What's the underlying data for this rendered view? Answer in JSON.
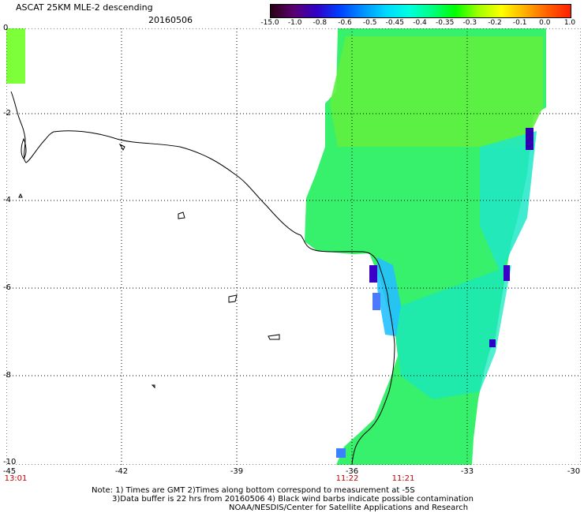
{
  "title": "ASCAT 25KM MLE-2 descending",
  "date": "20160506",
  "colorbar": {
    "labels": [
      "-15.0",
      "-1.0",
      "-0.8",
      "-0.6",
      "-0.5",
      "-0.45",
      "-0.4",
      "-0.35",
      "-0.3",
      "-0.2",
      "-0.1",
      "0.0",
      "1.0"
    ],
    "colors": [
      "#2a0010",
      "#5a0070",
      "#3000c8",
      "#0040ff",
      "#0090ff",
      "#00d8ff",
      "#00ffe0",
      "#00ff80",
      "#00ff00",
      "#a0ff00",
      "#ffff00",
      "#ffb000",
      "#ff6000",
      "#ff2000"
    ]
  },
  "axes": {
    "x_ticks": [
      "-45",
      "-42",
      "-39",
      "-36",
      "-33",
      "-30"
    ],
    "y_ticks": [
      "0",
      "-2",
      "-4",
      "-6",
      "-8",
      "-10"
    ],
    "x_range": [
      -45,
      -30
    ],
    "y_range": [
      -10,
      0
    ]
  },
  "pass_times": [
    {
      "label": "13:01",
      "lon": -45
    },
    {
      "label": "11:22",
      "lon": -36
    },
    {
      "label": "11:21",
      "lon": -34.5
    }
  ],
  "notes": {
    "line1": "Note: 1) Times are GMT 2)Times along bottom correspond to measurement at -5S",
    "line2": "3)Data buffer is 22 hrs from 20160506 4) Black wind barbs indicate possible contamination",
    "line3": "NOAA/NESDIS/Center for Satellite Applications and Research"
  }
}
